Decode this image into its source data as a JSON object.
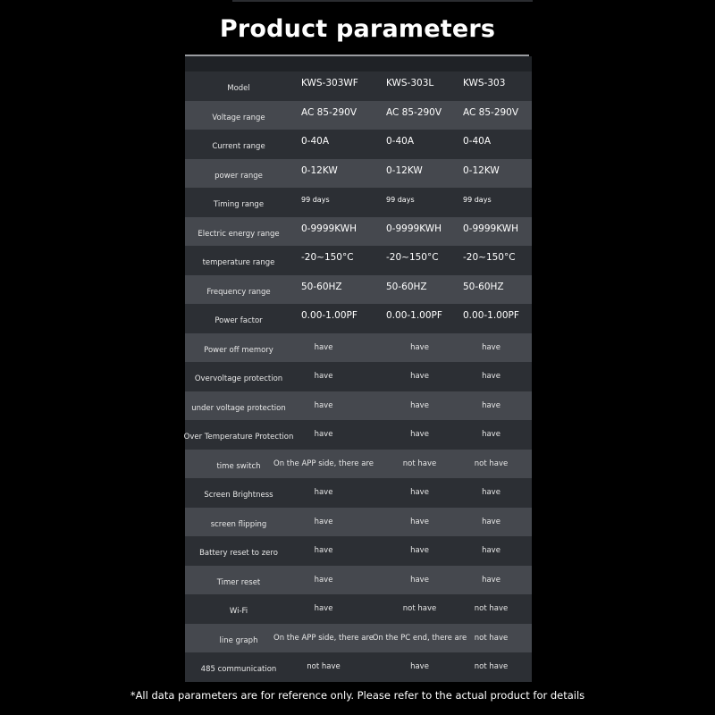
{
  "title": "Product parameters",
  "colors": {
    "background": "#000000",
    "row_dark": "#2c2f34",
    "row_light": "#45484e",
    "text": "#ffffff"
  },
  "table": {
    "rows": [
      {
        "label": "Model",
        "values": [
          "KWS-303WF",
          "KWS-303L",
          "KWS-303"
        ],
        "kind": "spec"
      },
      {
        "label": "Voltage range",
        "values": [
          "AC 85-290V",
          "AC 85-290V",
          "AC 85-290V"
        ],
        "kind": "spec"
      },
      {
        "label": "Current range",
        "values": [
          "0-40A",
          "0-40A",
          "0-40A"
        ],
        "kind": "spec"
      },
      {
        "label": "power range",
        "values": [
          "0-12KW",
          "0-12KW",
          "0-12KW"
        ],
        "kind": "spec"
      },
      {
        "label": "Timing range",
        "values": [
          "99 days",
          "99 days",
          "99 days"
        ],
        "kind": "spec small"
      },
      {
        "label": "Electric energy range",
        "values": [
          "0-9999KWH",
          "0-9999KWH",
          "0-9999KWH"
        ],
        "kind": "spec"
      },
      {
        "label": "temperature range",
        "values": [
          "-20~150°C",
          "-20~150°C",
          "-20~150°C"
        ],
        "kind": "spec"
      },
      {
        "label": "Frequency range",
        "values": [
          "50-60HZ",
          "50-60HZ",
          "50-60HZ"
        ],
        "kind": "spec"
      },
      {
        "label": "Power factor",
        "values": [
          "0.00-1.00PF",
          "0.00-1.00PF",
          "0.00-1.00PF"
        ],
        "kind": "spec"
      },
      {
        "label": "Power off memory",
        "values": [
          "have",
          "have",
          "have"
        ],
        "kind": "feat"
      },
      {
        "label": "Overvoltage protection",
        "values": [
          "have",
          "have",
          "have"
        ],
        "kind": "feat"
      },
      {
        "label": "under voltage protection",
        "values": [
          "have",
          "have",
          "have"
        ],
        "kind": "feat"
      },
      {
        "label": "Over Temperature Protection",
        "values": [
          "have",
          "have",
          "have"
        ],
        "kind": "feat"
      },
      {
        "label": "time switch",
        "values": [
          "On the APP side, there are",
          "not have",
          "not have"
        ],
        "kind": "feat"
      },
      {
        "label": "Screen Brightness",
        "values": [
          "have",
          "have",
          "have"
        ],
        "kind": "feat"
      },
      {
        "label": "screen flipping",
        "values": [
          "have",
          "have",
          "have"
        ],
        "kind": "feat"
      },
      {
        "label": "Battery reset to zero",
        "values": [
          "have",
          "have",
          "have"
        ],
        "kind": "feat"
      },
      {
        "label": "Timer reset",
        "values": [
          "have",
          "have",
          "have"
        ],
        "kind": "feat"
      },
      {
        "label": "Wi-Fi",
        "values": [
          "have",
          "not have",
          "not have"
        ],
        "kind": "feat"
      },
      {
        "label": "line graph",
        "values": [
          "On the APP side, there are",
          "On the PC end, there are",
          "not have"
        ],
        "kind": "feat"
      },
      {
        "label": "485 communication",
        "values": [
          "not have",
          "have",
          "not have"
        ],
        "kind": "feat"
      }
    ]
  },
  "footnote": "*All data parameters are for reference only. Please refer to the actual product for details"
}
